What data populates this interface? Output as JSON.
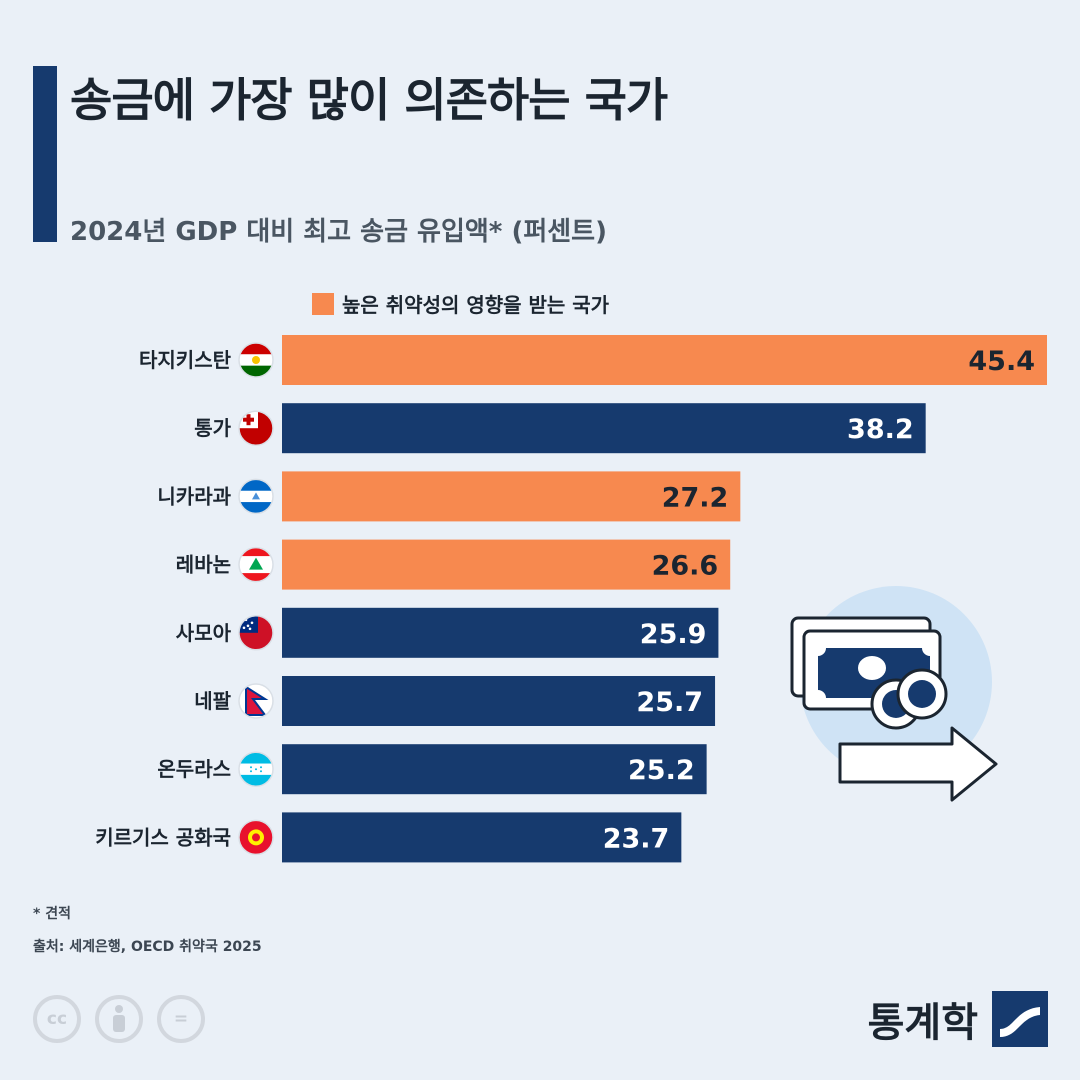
{
  "title": "송금에 가장 많이 의존하는 국가",
  "subtitle": "2024년 GDP 대비 최고 송금 유입액* (퍼센트)",
  "legend": {
    "label": "높은 취약성의 영향을 받는 국가"
  },
  "colors": {
    "high_vulnerability": "#f7894f",
    "other": "#163a6e",
    "accent": "#163a6e"
  },
  "chart_data": {
    "type": "bar",
    "orientation": "horizontal",
    "categories": [
      "타지키스탄",
      "통가",
      "니카라과",
      "레바논",
      "사모아",
      "네팔",
      "온두라스",
      "키르기스 공화국"
    ],
    "values": [
      45.4,
      38.2,
      27.2,
      26.6,
      25.9,
      25.7,
      25.2,
      23.7
    ],
    "high_vulnerability": [
      true,
      false,
      true,
      true,
      false,
      false,
      false,
      false
    ],
    "flag_icons": [
      "tajikistan-flag-icon",
      "tonga-flag-icon",
      "nicaragua-flag-icon",
      "lebanon-flag-icon",
      "samoa-flag-icon",
      "nepal-flag-icon",
      "honduras-flag-icon",
      "kyrgyzstan-flag-icon"
    ],
    "xlim": [
      0,
      45.4
    ],
    "grid": false
  },
  "footnote": "* 견적",
  "source": "출처: 세계은행, OECD 취약국 2025",
  "license_icons": [
    "cc-icon",
    "attribution-icon",
    "no-derivatives-icon"
  ],
  "license_text": {
    "cc": "cc",
    "nd": "="
  },
  "brand": {
    "name": "통계학"
  }
}
